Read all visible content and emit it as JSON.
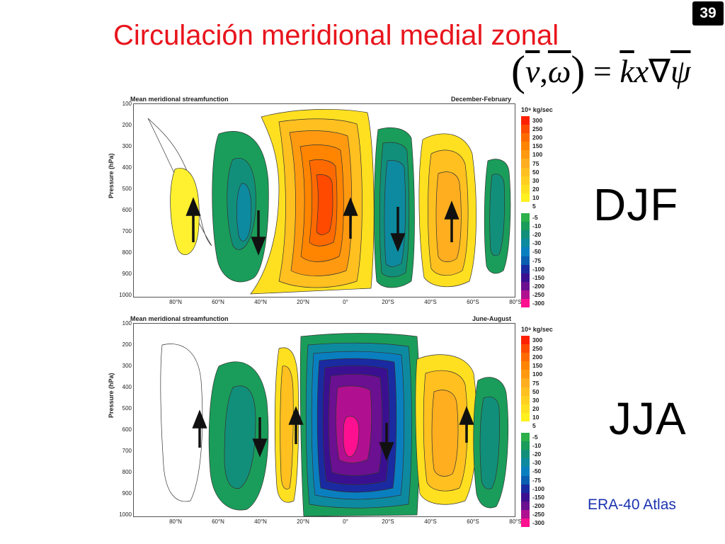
{
  "slide": {
    "title": "Circulación meridional medial zonal",
    "number": "39",
    "formula": {
      "lp": "(",
      "v": "v",
      "comma": ",",
      "omega": "ω",
      "rp": ")",
      "eq": "=",
      "k": "k",
      "x": "x",
      "nabla": "∇",
      "psi": "ψ"
    },
    "season_djf": "DJF",
    "season_jja": "JJA",
    "source": "ERA-40 Atlas"
  },
  "panels": [
    {
      "id": "djf",
      "header_left": "Mean meridional streamfunction",
      "header_right": "December-February",
      "ylabel": "Pressure (hPa)",
      "yticks": [
        "100",
        "200",
        "300",
        "400",
        "500",
        "600",
        "700",
        "800",
        "900",
        "1000"
      ],
      "xticks": [
        "80°N",
        "60°N",
        "40°N",
        "20°N",
        "0°",
        "20°S",
        "40°S",
        "60°S",
        "80°S"
      ],
      "colorbar_title": "10⁹ kg/sec"
    },
    {
      "id": "jja",
      "header_left": "Mean meridional streamfunction",
      "header_right": "June-August",
      "ylabel": "Pressure (hPa)",
      "yticks": [
        "100",
        "200",
        "300",
        "400",
        "500",
        "600",
        "700",
        "800",
        "900",
        "1000"
      ],
      "xticks": [
        "80°N",
        "60°N",
        "40°N",
        "20°N",
        "0°",
        "20°S",
        "40°S",
        "60°S",
        "80°S"
      ],
      "colorbar_title": "10⁹ kg/sec"
    }
  ],
  "colorbar": {
    "positive": [
      {
        "label": "300",
        "color": "#ff2000"
      },
      {
        "label": "250",
        "color": "#ff4a00"
      },
      {
        "label": "200",
        "color": "#ff6a00"
      },
      {
        "label": "150",
        "color": "#ff8400"
      },
      {
        "label": "100",
        "color": "#ff9a10"
      },
      {
        "label": "75",
        "color": "#ffae20"
      },
      {
        "label": "50",
        "color": "#ffc020"
      },
      {
        "label": "30",
        "color": "#ffd020"
      },
      {
        "label": "20",
        "color": "#ffe020"
      },
      {
        "label": "10",
        "color": "#fff020"
      },
      {
        "label": "5",
        "color": "#ffffff"
      }
    ],
    "negative": [
      {
        "label": "-5",
        "color": "#2bb04a"
      },
      {
        "label": "-10",
        "color": "#1a9d5a"
      },
      {
        "label": "-20",
        "color": "#118f7a"
      },
      {
        "label": "-30",
        "color": "#0d8aa0"
      },
      {
        "label": "-50",
        "color": "#0a7fc0"
      },
      {
        "label": "-75",
        "color": "#0a5fb0"
      },
      {
        "label": "-100",
        "color": "#1a2aa0"
      },
      {
        "label": "-150",
        "color": "#3a1090"
      },
      {
        "label": "-200",
        "color": "#6a1090"
      },
      {
        "label": "-250",
        "color": "#b01090"
      },
      {
        "label": "-300",
        "color": "#ff1090"
      }
    ]
  }
}
